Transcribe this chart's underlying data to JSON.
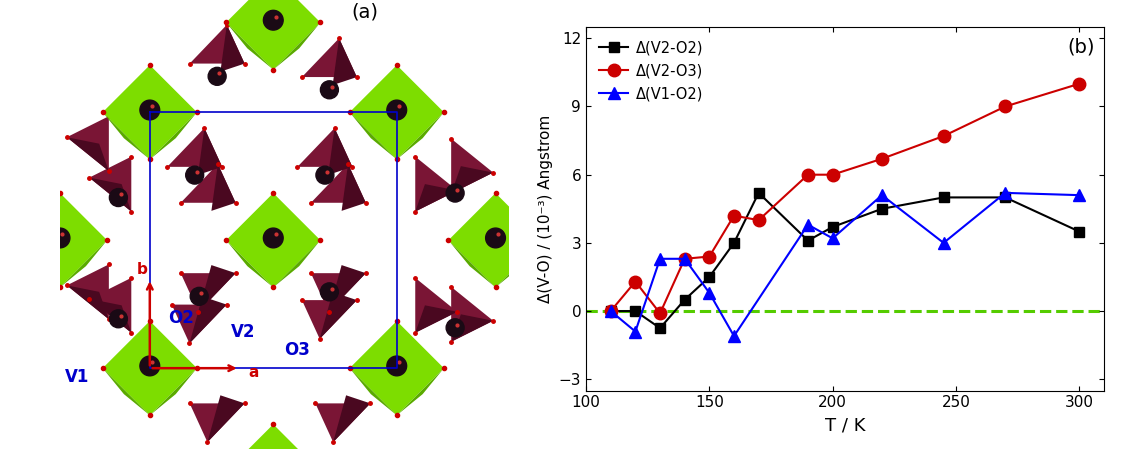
{
  "panel_b": {
    "series": [
      {
        "label": "Δ(V2-O2)",
        "color": "black",
        "marker": "s",
        "markersize": 7,
        "linewidth": 1.5,
        "x": [
          110,
          120,
          130,
          140,
          150,
          160,
          170,
          190,
          200,
          220,
          245,
          270,
          300
        ],
        "y": [
          0.0,
          0.0,
          -0.75,
          0.5,
          1.5,
          3.0,
          5.2,
          3.1,
          3.7,
          4.5,
          5.0,
          5.0,
          3.5
        ]
      },
      {
        "label": "Δ(V2-O3)",
        "color": "#cc0000",
        "marker": "o",
        "markersize": 9,
        "linewidth": 1.5,
        "x": [
          110,
          120,
          130,
          140,
          150,
          160,
          170,
          190,
          200,
          220,
          245,
          270,
          300
        ],
        "y": [
          0.0,
          1.3,
          -0.1,
          2.3,
          2.4,
          4.2,
          4.0,
          6.0,
          6.0,
          6.7,
          7.7,
          9.0,
          10.0
        ]
      },
      {
        "label": "Δ(V1-O2)",
        "color": "blue",
        "marker": "^",
        "markersize": 8,
        "linewidth": 1.5,
        "x": [
          110,
          120,
          130,
          140,
          150,
          160,
          190,
          200,
          220,
          245,
          270,
          300
        ],
        "y": [
          0.0,
          -0.9,
          2.3,
          2.3,
          0.8,
          -1.1,
          3.8,
          3.2,
          5.1,
          3.0,
          5.2,
          5.1
        ]
      }
    ],
    "xlabel": "T / K",
    "ylabel": "Δ(V-O) / (10⁻³) Angstrom",
    "xlim": [
      100,
      310
    ],
    "ylim": [
      -3.5,
      12.5
    ],
    "xticks": [
      100,
      150,
      200,
      250,
      300
    ],
    "yticks": [
      -3,
      0,
      3,
      6,
      9,
      12
    ],
    "panel_label": "(b)",
    "dashed_line_color": "#55cc00",
    "dashed_line_y": 0.0
  },
  "panel_a": {
    "label": "(a)",
    "green_color_top": "#7ddd00",
    "green_color_side": "#5aaa00",
    "maroon_color_light": "#7a1535",
    "maroon_color_dark": "#4a0820",
    "sphere_color": "#1a0a15",
    "red_dot_color": "#cc0000",
    "blue_line_color": "#0000cc",
    "red_arrow_color": "#cc0000"
  }
}
